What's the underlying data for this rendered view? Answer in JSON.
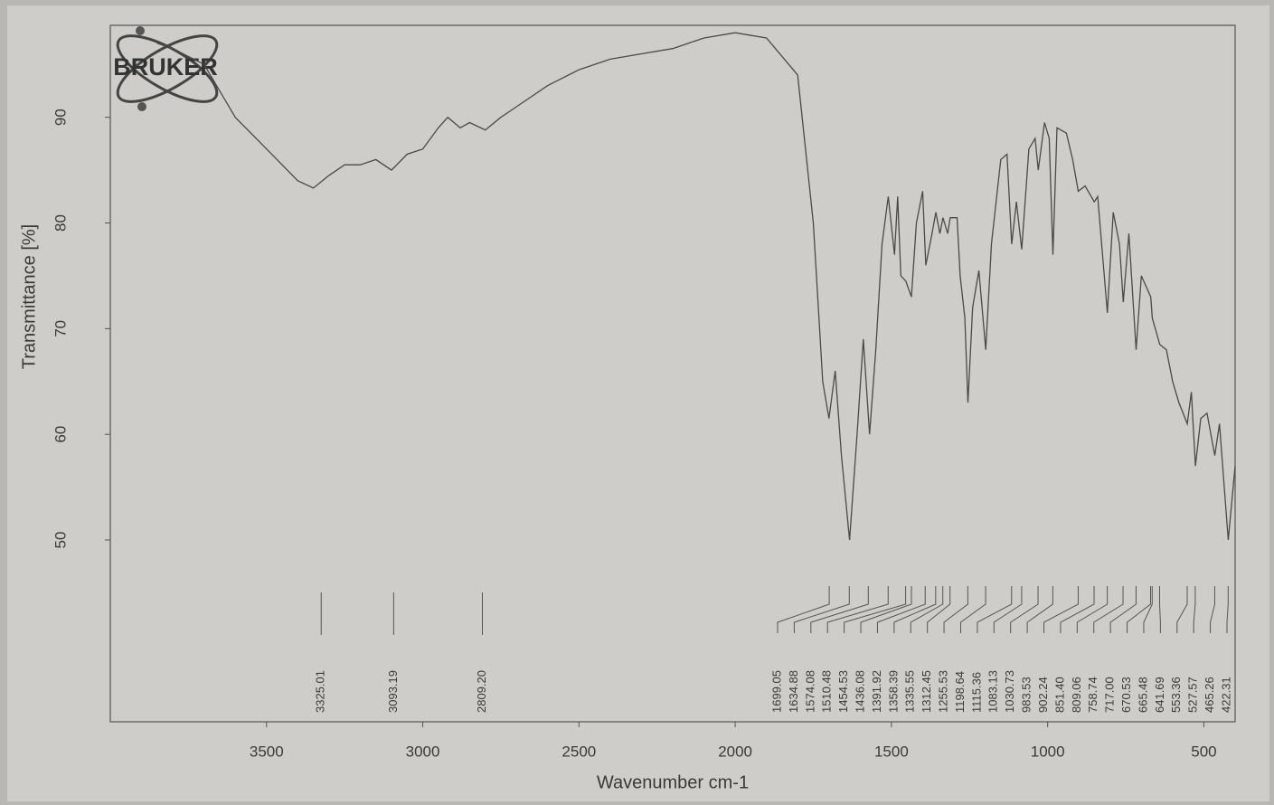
{
  "chart_data": {
    "type": "line",
    "logo": "BRUKER",
    "ylabel": "Transmittance [%]",
    "xlabel": "Wavenumber cm-1",
    "xlim": [
      4000,
      400
    ],
    "ylim": [
      32.8,
      98.7
    ],
    "xticks": [
      3500,
      3000,
      2500,
      2000,
      1500,
      1000,
      500
    ],
    "yticks": [
      50,
      60,
      70,
      80,
      90
    ],
    "color": "#4a4a4a",
    "x": [
      3850,
      3800,
      3700,
      3600,
      3500,
      3400,
      3350,
      3300,
      3250,
      3200,
      3150,
      3100,
      3050,
      3000,
      2950,
      2920,
      2880,
      2850,
      2800,
      2750,
      2700,
      2600,
      2500,
      2400,
      2300,
      2200,
      2100,
      2000,
      1900,
      1800,
      1750,
      1720,
      1700,
      1680,
      1660,
      1634,
      1610,
      1590,
      1570,
      1550,
      1530,
      1510,
      1490,
      1480,
      1470,
      1454,
      1436,
      1420,
      1400,
      1390,
      1370,
      1358,
      1345,
      1335,
      1320,
      1312,
      1290,
      1280,
      1265,
      1255,
      1240,
      1220,
      1198,
      1180,
      1150,
      1130,
      1115,
      1100,
      1083,
      1060,
      1040,
      1030,
      1010,
      995,
      983,
      970,
      940,
      920,
      902,
      880,
      851,
      840,
      809,
      790,
      770,
      758,
      740,
      717,
      700,
      670,
      665,
      641,
      620,
      600,
      580,
      553,
      540,
      527,
      510,
      490,
      465,
      450,
      422,
      400
    ],
    "values": [
      97,
      96.5,
      95,
      90,
      87,
      84,
      83.3,
      84.5,
      85.5,
      85.5,
      86,
      85,
      86.5,
      87,
      89,
      90,
      89,
      89.5,
      88.8,
      90,
      91,
      93,
      94.5,
      95.5,
      96,
      96.5,
      97.5,
      98,
      97.5,
      94,
      80,
      65,
      61.5,
      66,
      58,
      50,
      60,
      69,
      60,
      68,
      78,
      82.5,
      77,
      82.5,
      75,
      74.5,
      73,
      80,
      83,
      76,
      79,
      81,
      79,
      80.5,
      79,
      80.5,
      80.5,
      75,
      71,
      63,
      72,
      75.5,
      68,
      78,
      86,
      86.5,
      78,
      82,
      77.5,
      87,
      88,
      85,
      89.5,
      88,
      77,
      89,
      88.5,
      86,
      83,
      83.5,
      82,
      82.5,
      71.5,
      81,
      78,
      72.5,
      79,
      68,
      75,
      73,
      71,
      68.5,
      68,
      65,
      63,
      61,
      64,
      57,
      61.5,
      62,
      58,
      61,
      50,
      57
    ],
    "peaks": [
      3325.01,
      3093.19,
      {
        "value": 2809.2,
        "label": "2809.20"
      },
      1699.05,
      1634.88,
      1574.08,
      1510.48,
      1454.53,
      1436.08,
      1391.92,
      1358.39,
      1335.55,
      1312.45,
      1255.53,
      1198.64,
      1115.36,
      1083.13,
      1030.73,
      983.53,
      902.24,
      {
        "value": 851.4,
        "label": "851.40"
      },
      809.06,
      758.74,
      {
        "value": 717,
        "label": "717.00"
      },
      670.53,
      665.48,
      641.69,
      553.36,
      527.57,
      465.26,
      422.31
    ]
  }
}
